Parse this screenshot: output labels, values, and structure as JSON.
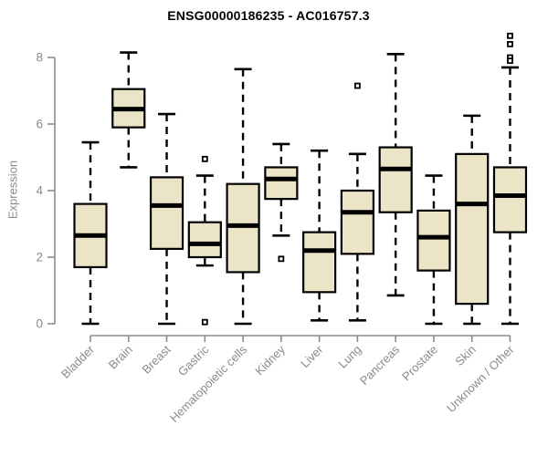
{
  "title": "ENSG00000186235 - AC016757.3",
  "chart_data": {
    "type": "boxplot",
    "title": "ENSG00000186235 - AC016757.3",
    "xlabel": "",
    "ylabel": "Expression",
    "ylim": [
      0,
      8.8
    ],
    "yticks": [
      0,
      2,
      4,
      6,
      8
    ],
    "grid": false,
    "legend": "none",
    "categories": [
      "Bladder",
      "Brain",
      "Breast",
      "Gastric",
      "Hematopoietic cells",
      "Kidney",
      "Liver",
      "Lung",
      "Pancreas",
      "Prostate",
      "Skin",
      "Unknown / Other"
    ],
    "series": [
      {
        "category": "Bladder",
        "whisker_low": 0.0,
        "q1": 1.7,
        "median": 2.65,
        "q3": 3.6,
        "whisker_high": 5.45,
        "outliers": []
      },
      {
        "category": "Brain",
        "whisker_low": 4.7,
        "q1": 5.9,
        "median": 6.45,
        "q3": 7.05,
        "whisker_high": 8.15,
        "outliers": []
      },
      {
        "category": "Breast",
        "whisker_low": 0.0,
        "q1": 2.25,
        "median": 3.55,
        "q3": 4.4,
        "whisker_high": 6.3,
        "outliers": []
      },
      {
        "category": "Gastric",
        "whisker_low": 1.75,
        "q1": 2.0,
        "median": 2.4,
        "q3": 3.05,
        "whisker_high": 4.45,
        "outliers": [
          4.95,
          0.05
        ]
      },
      {
        "category": "Hematopoietic cells",
        "whisker_low": 0.0,
        "q1": 1.55,
        "median": 2.95,
        "q3": 4.2,
        "whisker_high": 7.65,
        "outliers": []
      },
      {
        "category": "Kidney",
        "whisker_low": 2.65,
        "q1": 3.75,
        "median": 4.35,
        "q3": 4.7,
        "whisker_high": 5.4,
        "outliers": [
          1.95
        ]
      },
      {
        "category": "Liver",
        "whisker_low": 0.1,
        "q1": 0.95,
        "median": 2.2,
        "q3": 2.75,
        "whisker_high": 5.2,
        "outliers": []
      },
      {
        "category": "Lung",
        "whisker_low": 0.1,
        "q1": 2.1,
        "median": 3.35,
        "q3": 4.0,
        "whisker_high": 5.1,
        "outliers": [
          7.15
        ]
      },
      {
        "category": "Pancreas",
        "whisker_low": 0.85,
        "q1": 3.35,
        "median": 4.65,
        "q3": 5.3,
        "whisker_high": 8.1,
        "outliers": []
      },
      {
        "category": "Prostate",
        "whisker_low": 0.0,
        "q1": 1.6,
        "median": 2.6,
        "q3": 3.4,
        "whisker_high": 4.45,
        "outliers": []
      },
      {
        "category": "Skin",
        "whisker_low": 0.0,
        "q1": 0.6,
        "median": 3.6,
        "q3": 5.1,
        "whisker_high": 6.25,
        "outliers": []
      },
      {
        "category": "Unknown / Other",
        "whisker_low": 0.0,
        "q1": 2.75,
        "median": 3.85,
        "q3": 4.7,
        "whisker_high": 7.7,
        "outliers": [
          8.65,
          8.4,
          8.0,
          7.9
        ]
      }
    ],
    "colors": {
      "box_fill": "#ebe4c7",
      "box_border": "#000000",
      "median": "#000000",
      "whisker": "#000000",
      "outlier": "#000000",
      "axis": "#8b8b8b",
      "tick_label": "#8b8b8b",
      "title": "#000000",
      "background": "#ffffff"
    }
  }
}
